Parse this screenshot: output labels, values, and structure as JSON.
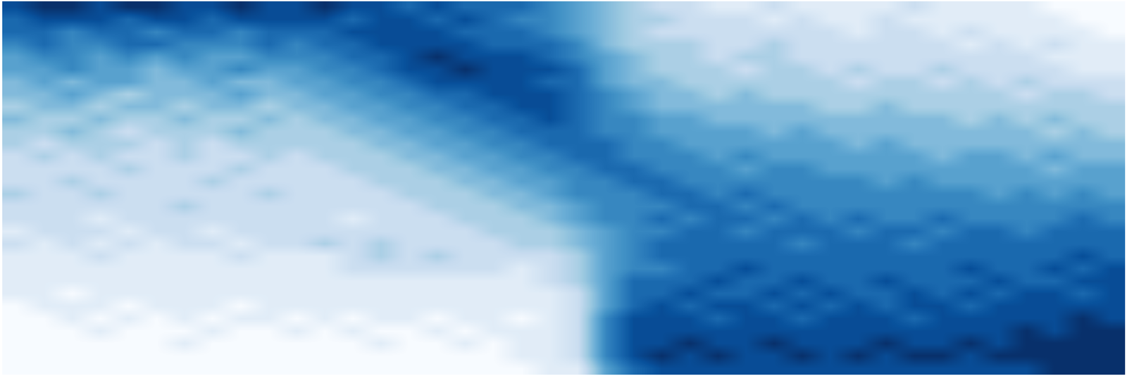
{
  "chart_data": {
    "type": "heatmap",
    "color": "Blues",
    "tick_labels": false,
    "value_range": [
      0,
      9
    ],
    "cells": [
      [
        8,
        9,
        9,
        8,
        9,
        9,
        8,
        8,
        9,
        8,
        8,
        9,
        8,
        8,
        7,
        8,
        7,
        7,
        7,
        6,
        5,
        4,
        3,
        2,
        2,
        1,
        1,
        2,
        1,
        1,
        1,
        1,
        2,
        1,
        1,
        1,
        1,
        0,
        0,
        0
      ],
      [
        7,
        8,
        8,
        8,
        7,
        8,
        8,
        7,
        8,
        8,
        8,
        8,
        7,
        8,
        8,
        7,
        8,
        7,
        6,
        6,
        5,
        4,
        3,
        3,
        2,
        2,
        2,
        1,
        2,
        1,
        1,
        2,
        1,
        1,
        1,
        1,
        1,
        1,
        0,
        0
      ],
      [
        7,
        7,
        6,
        7,
        7,
        6,
        7,
        7,
        6,
        7,
        7,
        7,
        8,
        8,
        8,
        8,
        7,
        7,
        7,
        6,
        5,
        4,
        3,
        2,
        2,
        2,
        2,
        2,
        2,
        2,
        1,
        2,
        2,
        1,
        2,
        1,
        1,
        1,
        1,
        0
      ],
      [
        6,
        7,
        6,
        6,
        7,
        7,
        6,
        6,
        6,
        7,
        6,
        7,
        7,
        8,
        8,
        8,
        8,
        7,
        7,
        7,
        6,
        4,
        3,
        3,
        3,
        2,
        2,
        3,
        2,
        2,
        2,
        2,
        2,
        2,
        1,
        2,
        1,
        2,
        1,
        1
      ],
      [
        5,
        6,
        6,
        5,
        6,
        5,
        6,
        5,
        5,
        6,
        6,
        6,
        7,
        7,
        8,
        9,
        8,
        8,
        8,
        7,
        6,
        5,
        4,
        3,
        3,
        2,
        3,
        3,
        2,
        2,
        2,
        2,
        2,
        2,
        2,
        2,
        2,
        1,
        1,
        1
      ],
      [
        5,
        5,
        6,
        5,
        5,
        4,
        5,
        5,
        6,
        5,
        5,
        6,
        6,
        7,
        8,
        8,
        9,
        8,
        8,
        8,
        7,
        5,
        4,
        3,
        3,
        3,
        2,
        3,
        3,
        2,
        3,
        2,
        2,
        3,
        2,
        2,
        2,
        2,
        1,
        1
      ],
      [
        4,
        5,
        4,
        5,
        5,
        4,
        4,
        5,
        4,
        4,
        5,
        5,
        6,
        6,
        7,
        8,
        8,
        8,
        8,
        7,
        7,
        5,
        4,
        4,
        3,
        3,
        3,
        3,
        3,
        3,
        2,
        3,
        3,
        2,
        3,
        2,
        3,
        2,
        2,
        2
      ],
      [
        4,
        4,
        5,
        4,
        3,
        4,
        4,
        4,
        5,
        4,
        4,
        5,
        5,
        6,
        6,
        7,
        7,
        8,
        8,
        8,
        7,
        6,
        5,
        4,
        4,
        3,
        4,
        3,
        3,
        3,
        3,
        3,
        3,
        3,
        3,
        3,
        2,
        3,
        3,
        2
      ],
      [
        3,
        4,
        4,
        3,
        4,
        4,
        3,
        4,
        4,
        3,
        4,
        4,
        5,
        5,
        6,
        6,
        7,
        7,
        8,
        8,
        7,
        6,
        5,
        4,
        4,
        4,
        4,
        4,
        4,
        3,
        3,
        4,
        3,
        3,
        3,
        3,
        3,
        3,
        3,
        3
      ],
      [
        4,
        3,
        3,
        4,
        3,
        3,
        4,
        3,
        3,
        4,
        3,
        4,
        4,
        5,
        5,
        6,
        6,
        7,
        7,
        8,
        7,
        6,
        6,
        5,
        5,
        4,
        4,
        4,
        4,
        4,
        4,
        4,
        4,
        4,
        3,
        4,
        3,
        4,
        3,
        3
      ],
      [
        3,
        3,
        4,
        3,
        2,
        3,
        3,
        3,
        4,
        3,
        3,
        3,
        4,
        4,
        5,
        5,
        6,
        6,
        7,
        7,
        7,
        6,
        6,
        5,
        5,
        5,
        5,
        4,
        5,
        4,
        4,
        4,
        4,
        4,
        4,
        4,
        4,
        3,
        4,
        3
      ],
      [
        3,
        2,
        3,
        3,
        3,
        2,
        3,
        2,
        3,
        3,
        3,
        3,
        3,
        4,
        4,
        5,
        5,
        6,
        6,
        7,
        7,
        7,
        6,
        6,
        5,
        5,
        5,
        5,
        5,
        5,
        4,
        5,
        4,
        4,
        4,
        4,
        4,
        4,
        4,
        4
      ],
      [
        2,
        3,
        2,
        3,
        2,
        2,
        3,
        2,
        2,
        3,
        2,
        3,
        3,
        3,
        4,
        4,
        5,
        5,
        6,
        6,
        7,
        7,
        6,
        6,
        6,
        5,
        6,
        5,
        5,
        5,
        5,
        5,
        5,
        4,
        5,
        5,
        4,
        5,
        4,
        4
      ],
      [
        2,
        2,
        2,
        2,
        3,
        2,
        2,
        2,
        3,
        2,
        2,
        2,
        3,
        3,
        3,
        4,
        4,
        5,
        5,
        6,
        6,
        7,
        7,
        6,
        6,
        6,
        5,
        6,
        6,
        5,
        5,
        5,
        5,
        5,
        5,
        5,
        5,
        4,
        5,
        5
      ],
      [
        2,
        2,
        3,
        2,
        2,
        2,
        2,
        3,
        2,
        2,
        2,
        2,
        2,
        3,
        3,
        3,
        4,
        4,
        5,
        5,
        6,
        6,
        7,
        7,
        6,
        6,
        6,
        6,
        6,
        6,
        6,
        5,
        6,
        5,
        5,
        5,
        5,
        5,
        5,
        5
      ],
      [
        3,
        2,
        2,
        3,
        2,
        2,
        2,
        2,
        2,
        3,
        2,
        2,
        2,
        2,
        3,
        3,
        3,
        4,
        4,
        5,
        6,
        6,
        6,
        7,
        7,
        6,
        7,
        6,
        6,
        6,
        6,
        6,
        6,
        6,
        6,
        5,
        6,
        5,
        6,
        5
      ],
      [
        2,
        2,
        2,
        2,
        2,
        2,
        3,
        2,
        2,
        2,
        2,
        2,
        2,
        2,
        2,
        3,
        3,
        3,
        4,
        4,
        5,
        6,
        6,
        6,
        7,
        7,
        6,
        7,
        6,
        6,
        6,
        6,
        6,
        6,
        6,
        6,
        6,
        6,
        6,
        6
      ],
      [
        2,
        2,
        2,
        1,
        2,
        2,
        2,
        2,
        2,
        2,
        2,
        2,
        1,
        2,
        2,
        2,
        3,
        3,
        3,
        4,
        5,
        6,
        6,
        7,
        6,
        7,
        7,
        6,
        7,
        6,
        7,
        6,
        6,
        7,
        6,
        6,
        6,
        6,
        7,
        6
      ],
      [
        1,
        2,
        2,
        2,
        1,
        2,
        2,
        1,
        2,
        2,
        2,
        2,
        2,
        2,
        2,
        2,
        2,
        3,
        3,
        3,
        4,
        5,
        6,
        6,
        7,
        7,
        6,
        7,
        7,
        7,
        6,
        7,
        7,
        6,
        7,
        7,
        6,
        7,
        7,
        7
      ],
      [
        2,
        1,
        2,
        1,
        2,
        1,
        2,
        2,
        1,
        2,
        2,
        3,
        2,
        3,
        2,
        2,
        2,
        2,
        3,
        3,
        4,
        5,
        6,
        7,
        7,
        7,
        7,
        7,
        6,
        7,
        7,
        7,
        6,
        7,
        7,
        7,
        7,
        7,
        7,
        7
      ],
      [
        1,
        1,
        1,
        2,
        1,
        1,
        1,
        1,
        2,
        1,
        1,
        1,
        2,
        3,
        2,
        3,
        2,
        2,
        2,
        2,
        3,
        5,
        6,
        7,
        7,
        7,
        7,
        7,
        7,
        7,
        7,
        7,
        7,
        7,
        7,
        7,
        7,
        7,
        8,
        7
      ],
      [
        1,
        1,
        1,
        1,
        1,
        1,
        1,
        1,
        1,
        1,
        1,
        1,
        2,
        2,
        2,
        2,
        2,
        2,
        1,
        2,
        3,
        5,
        6,
        6,
        7,
        7,
        8,
        7,
        7,
        7,
        7,
        7,
        7,
        7,
        8,
        7,
        7,
        8,
        7,
        8
      ],
      [
        1,
        1,
        1,
        1,
        1,
        1,
        1,
        1,
        1,
        1,
        1,
        1,
        1,
        1,
        1,
        1,
        1,
        1,
        1,
        2,
        3,
        5,
        7,
        7,
        7,
        8,
        7,
        7,
        8,
        7,
        7,
        8,
        7,
        7,
        7,
        8,
        7,
        7,
        8,
        8
      ],
      [
        1,
        1,
        0,
        1,
        1,
        1,
        1,
        1,
        1,
        1,
        1,
        1,
        1,
        1,
        1,
        1,
        1,
        1,
        1,
        1,
        2,
        5,
        7,
        7,
        8,
        7,
        7,
        8,
        7,
        8,
        7,
        7,
        8,
        7,
        8,
        7,
        8,
        8,
        7,
        8
      ],
      [
        0,
        1,
        1,
        1,
        0,
        1,
        1,
        1,
        0,
        1,
        1,
        1,
        1,
        1,
        1,
        1,
        1,
        1,
        1,
        1,
        2,
        5,
        7,
        8,
        7,
        8,
        8,
        7,
        8,
        7,
        8,
        7,
        8,
        8,
        7,
        8,
        8,
        8,
        8,
        8
      ],
      [
        0,
        0,
        1,
        0,
        1,
        0,
        1,
        0,
        1,
        1,
        0,
        1,
        0,
        1,
        1,
        0,
        1,
        1,
        0,
        1,
        2,
        6,
        8,
        8,
        8,
        7,
        8,
        8,
        7,
        8,
        8,
        8,
        7,
        8,
        8,
        8,
        8,
        8,
        9,
        8
      ],
      [
        0,
        0,
        0,
        1,
        0,
        0,
        0,
        1,
        0,
        0,
        1,
        0,
        1,
        0,
        0,
        1,
        0,
        1,
        1,
        1,
        2,
        6,
        8,
        8,
        8,
        8,
        8,
        8,
        8,
        8,
        8,
        8,
        8,
        8,
        8,
        8,
        9,
        8,
        9,
        9
      ],
      [
        0,
        0,
        0,
        0,
        0,
        0,
        1,
        0,
        0,
        0,
        0,
        0,
        0,
        1,
        0,
        0,
        1,
        0,
        1,
        1,
        2,
        6,
        8,
        8,
        9,
        8,
        8,
        9,
        8,
        8,
        8,
        9,
        8,
        8,
        9,
        8,
        9,
        9,
        9,
        9
      ],
      [
        0,
        0,
        0,
        0,
        0,
        0,
        0,
        0,
        0,
        0,
        0,
        0,
        0,
        0,
        0,
        0,
        0,
        0,
        1,
        1,
        2,
        6,
        8,
        9,
        8,
        9,
        8,
        8,
        9,
        8,
        9,
        8,
        9,
        9,
        8,
        9,
        9,
        9,
        9,
        9
      ],
      [
        0,
        0,
        0,
        0,
        0,
        0,
        0,
        0,
        0,
        0,
        0,
        0,
        0,
        0,
        0,
        0,
        0,
        0,
        0,
        1,
        1,
        5,
        7,
        8,
        8,
        8,
        8,
        8,
        8,
        8,
        8,
        8,
        8,
        8,
        8,
        8,
        8,
        9,
        9,
        9
      ]
    ]
  }
}
